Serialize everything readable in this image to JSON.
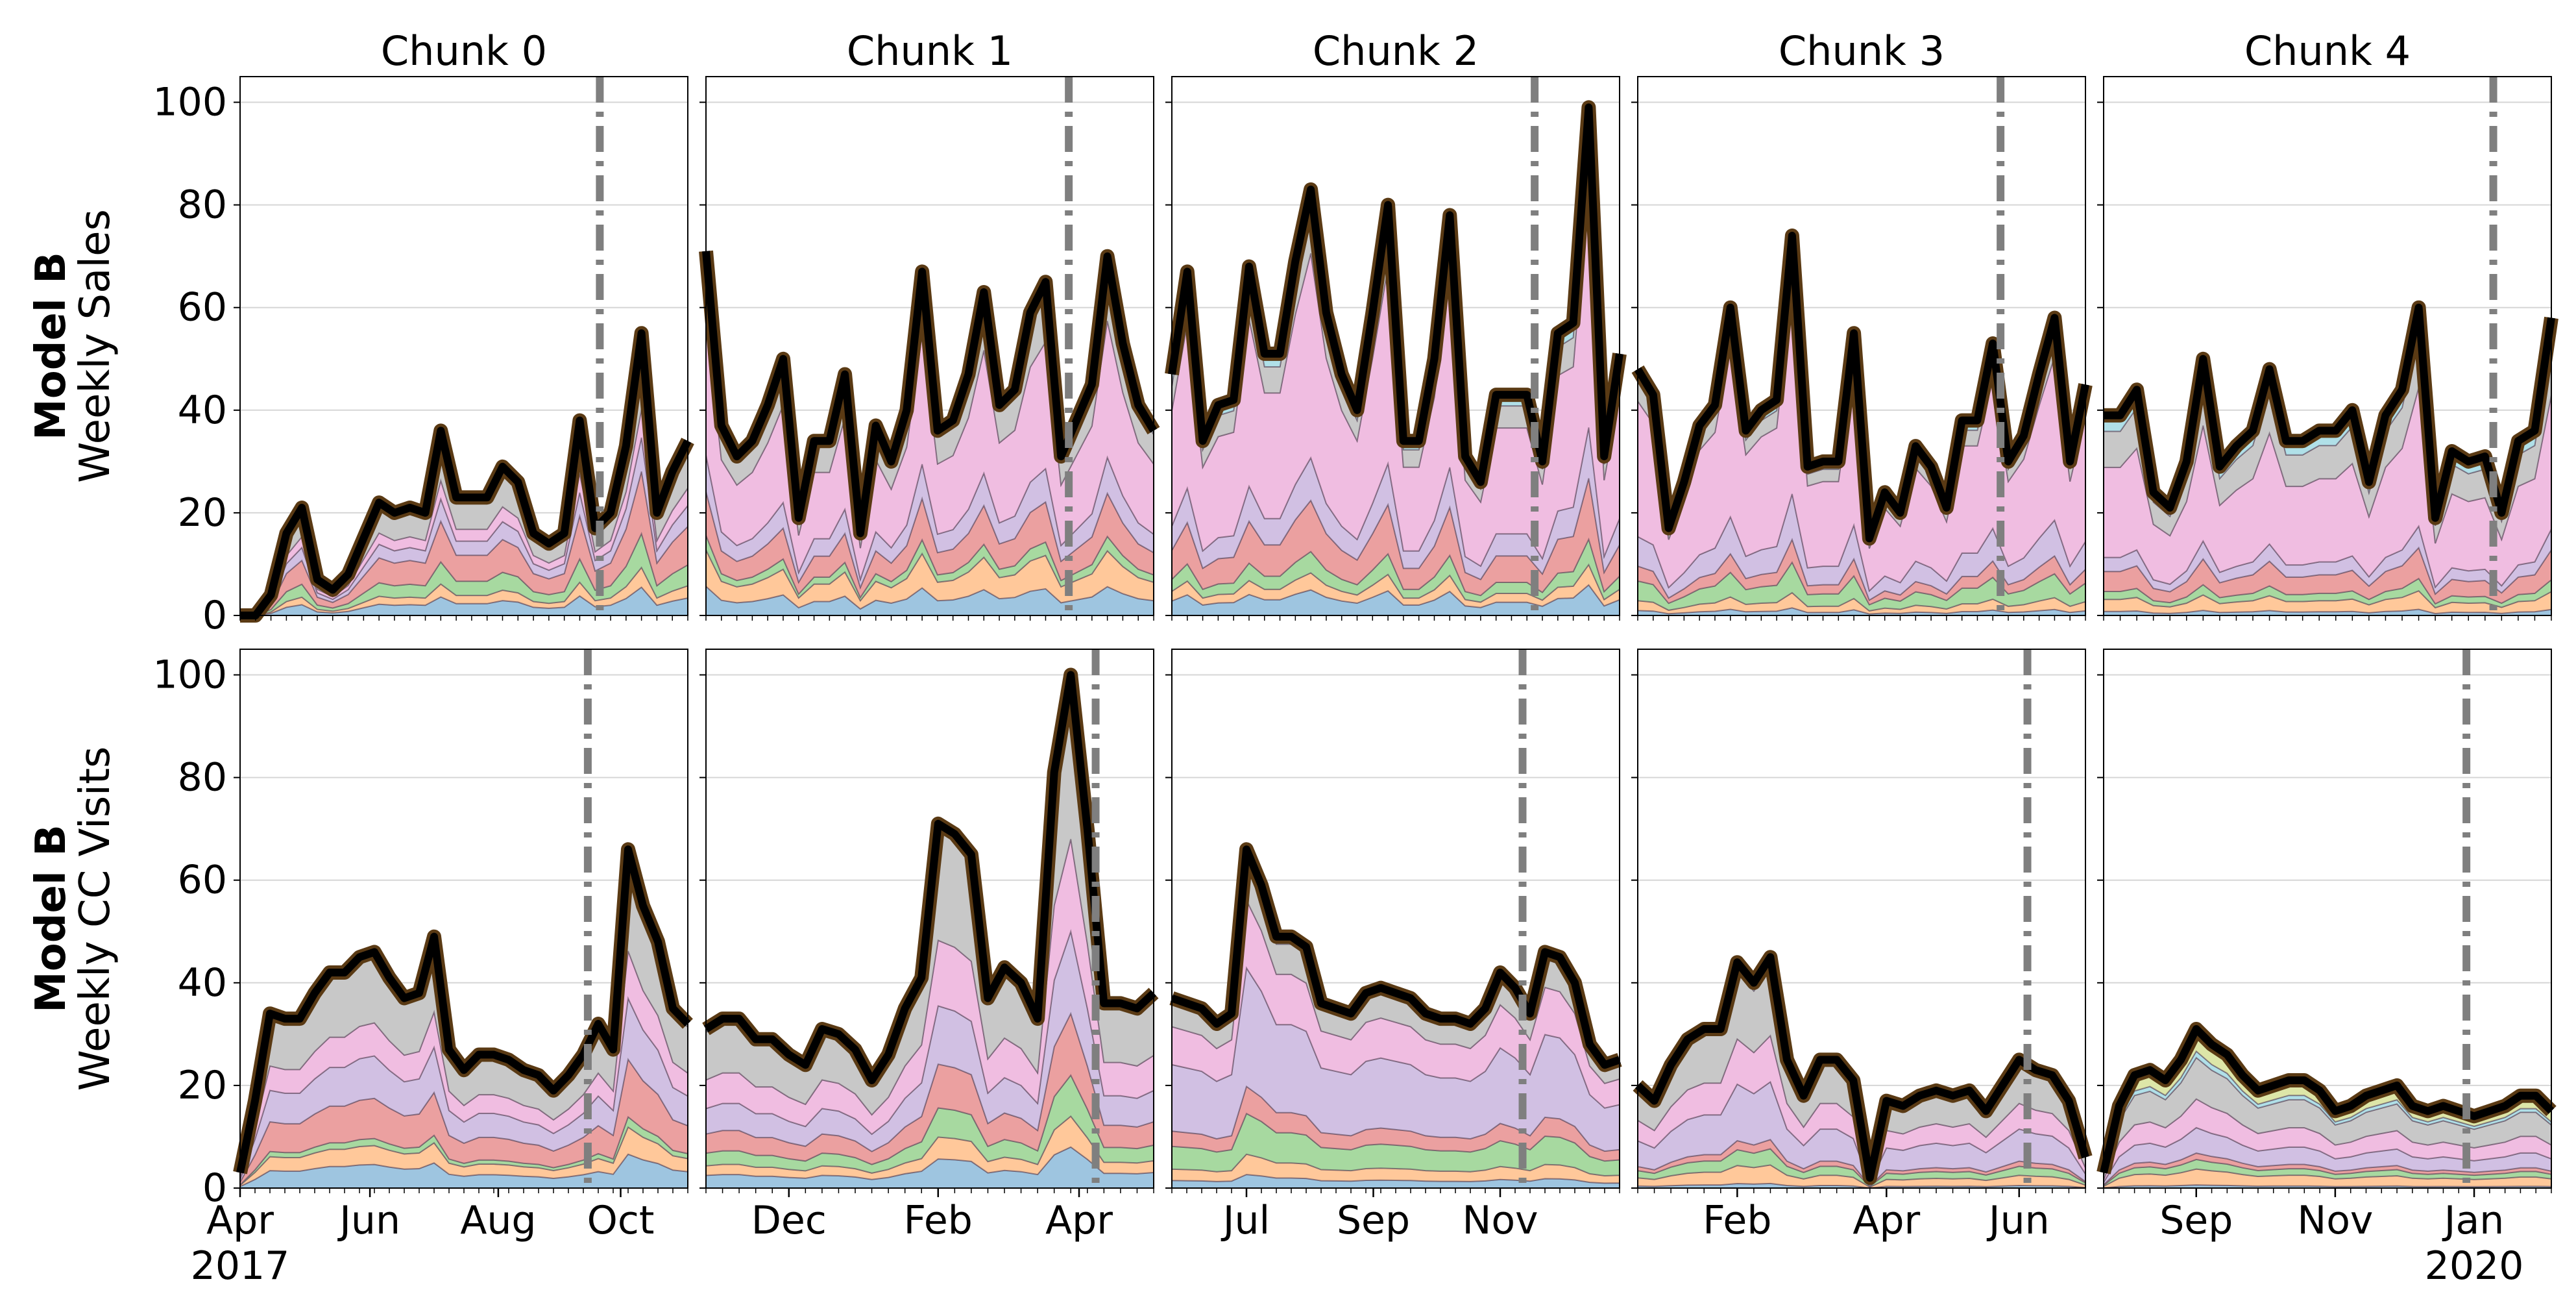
{
  "chart_data": {
    "type": "area",
    "stacked": true,
    "column_titles": [
      "Chunk 0",
      "Chunk 1",
      "Chunk 2",
      "Chunk 3",
      "Chunk 4"
    ],
    "rows": [
      {
        "ylabel_bold": "Model B",
        "ylabel": "Weekly Sales"
      },
      {
        "ylabel_bold": "Model B",
        "ylabel": "Weekly CC Visits"
      }
    ],
    "ylim": [
      0,
      105
    ],
    "yticks": [
      0,
      20,
      40,
      60,
      80,
      100
    ],
    "grid": true,
    "series_colors": [
      "#9ec5e0",
      "#ffc89a",
      "#a7d9a0",
      "#eba0a0",
      "#d1c0e3",
      "#f0bde1",
      "#c8c8c8",
      "#b0e0e8",
      "#dde6a8"
    ],
    "xtick_labels": [
      [
        {
          "label": "Apr",
          "sub": "2017",
          "pos": 0
        },
        {
          "label": "Jun",
          "pos": 8.7
        },
        {
          "label": "Aug",
          "pos": 17.3
        },
        {
          "label": "Oct",
          "pos": 25.5
        }
      ],
      [
        {
          "label": "Dec",
          "pos": 5
        },
        {
          "label": "Feb",
          "pos": 14
        },
        {
          "label": "Apr",
          "pos": 22.5
        }
      ],
      [
        {
          "label": "Jul",
          "pos": 5
        },
        {
          "label": "Sep",
          "pos": 13.5
        },
        {
          "label": "Nov",
          "pos": 22
        }
      ],
      [
        {
          "label": "Feb",
          "pos": 6
        },
        {
          "label": "Apr",
          "pos": 15
        },
        {
          "label": "Jun",
          "pos": 23
        }
      ],
      [
        {
          "label": "Sep",
          "pos": 6
        },
        {
          "label": "Nov",
          "pos": 15
        },
        {
          "label": "Jan",
          "sub": "2020",
          "pos": 24
        }
      ]
    ],
    "vlines": [
      23.3,
      23.5,
      23.5,
      23.5,
      23.5
    ],
    "panels": [
      [
        {
          "total": [
            0,
            0,
            4,
            16,
            21,
            7,
            5,
            8,
            15,
            22,
            20,
            21,
            20,
            36,
            23,
            23,
            23,
            29,
            26,
            16,
            14,
            16,
            38,
            17,
            20,
            33,
            55,
            20,
            28,
            34
          ],
          "fractions": [
            0.1,
            0.07,
            0.12,
            0.22,
            0.12,
            0.1,
            0.22,
            0.05
          ]
        },
        {
          "total": [
            3,
            17,
            34,
            33,
            33,
            38,
            42,
            42,
            45,
            46,
            41,
            37,
            38,
            49,
            27,
            23,
            26,
            26,
            25,
            23,
            22,
            19,
            22,
            26,
            32,
            27,
            66,
            55,
            48,
            35,
            32
          ],
          "fractions": [
            0.1,
            0.08,
            0.03,
            0.17,
            0.18,
            0.14,
            0.28,
            0.02
          ]
        }
      ],
      [
        {
          "total": [
            71,
            37,
            31,
            34,
            41,
            50,
            19,
            34,
            34,
            47,
            16,
            37,
            30,
            40,
            67,
            36,
            38,
            47,
            63,
            41,
            44,
            59,
            65,
            31,
            38,
            45,
            70,
            53,
            41,
            36
          ],
          "fractions": [
            0.08,
            0.1,
            0.04,
            0.12,
            0.1,
            0.38,
            0.16,
            0.02
          ]
        },
        {
          "total": [
            31,
            33,
            33,
            29,
            29,
            26,
            24,
            31,
            30,
            27,
            21,
            26,
            35,
            41,
            71,
            69,
            65,
            37,
            43,
            40,
            33,
            81,
            100,
            70,
            36,
            36,
            35,
            38
          ],
          "fractions": [
            0.08,
            0.06,
            0.08,
            0.12,
            0.16,
            0.18,
            0.3,
            0.02
          ]
        }
      ],
      [
        {
          "total": [
            47,
            67,
            34,
            41,
            42,
            68,
            51,
            51,
            69,
            83,
            59,
            47,
            40,
            59,
            80,
            34,
            34,
            50,
            78,
            31,
            26,
            43,
            43,
            43,
            30,
            55,
            57,
            99,
            31,
            51
          ],
          "fractions": [
            0.06,
            0.04,
            0.05,
            0.12,
            0.1,
            0.48,
            0.1,
            0.05
          ]
        },
        {
          "total": [
            37,
            36,
            35,
            32,
            34,
            66,
            59,
            49,
            49,
            47,
            36,
            35,
            34,
            38,
            39,
            38,
            37,
            34,
            33,
            33,
            32,
            35,
            42,
            39,
            34,
            46,
            45,
            40,
            28,
            24,
            25
          ],
          "fractions": [
            0.04,
            0.06,
            0.12,
            0.08,
            0.35,
            0.2,
            0.12,
            0.03
          ]
        }
      ],
      [
        {
          "total": [
            48,
            43,
            17,
            26,
            37,
            41,
            60,
            36,
            40,
            42,
            74,
            29,
            30,
            30,
            55,
            15,
            24,
            20,
            33,
            29,
            21,
            38,
            38,
            53,
            30,
            35,
            47,
            58,
            30,
            45
          ],
          "fractions": [
            0.02,
            0.04,
            0.08,
            0.06,
            0.12,
            0.55,
            0.08,
            0.05
          ]
        },
        {
          "total": [
            20,
            17,
            24,
            29,
            31,
            31,
            44,
            40,
            45,
            25,
            18,
            25,
            25,
            21,
            2,
            17,
            16,
            18,
            19,
            18,
            19,
            15,
            20,
            25,
            23,
            22,
            17,
            6
          ],
          "fractions": [
            0.02,
            0.08,
            0.07,
            0.04,
            0.25,
            0.2,
            0.3,
            0.04
          ]
        }
      ],
      [
        {
          "total": [
            39,
            39,
            44,
            24,
            21,
            30,
            50,
            29,
            33,
            36,
            48,
            34,
            34,
            36,
            36,
            40,
            26,
            39,
            44,
            60,
            19,
            32,
            30,
            31,
            20,
            34,
            36,
            58
          ],
          "fractions": [
            0.02,
            0.06,
            0.04,
            0.1,
            0.07,
            0.45,
            0.18,
            0.08
          ]
        },
        {
          "total": [
            3,
            16,
            22,
            23,
            21,
            25,
            31,
            28,
            26,
            22,
            19,
            20,
            21,
            21,
            19,
            15,
            16,
            18,
            19,
            20,
            16,
            15,
            16,
            15,
            14,
            15,
            16,
            18,
            18,
            15
          ],
          "fractions": [
            0.02,
            0.1,
            0.06,
            0.04,
            0.16,
            0.18,
            0.26,
            0.04
          ]
        }
      ]
    ]
  }
}
